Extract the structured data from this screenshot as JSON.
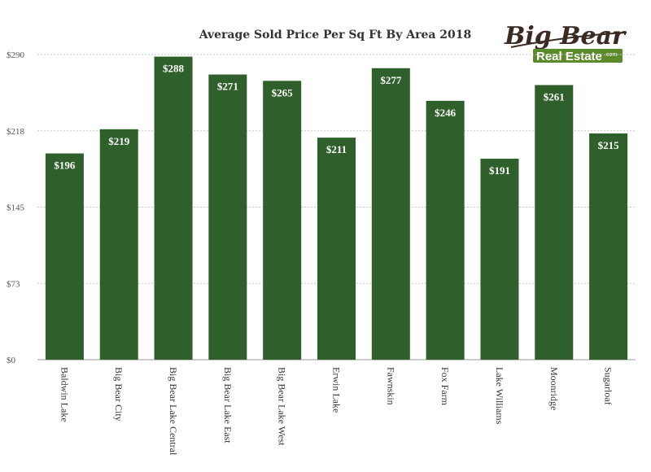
{
  "chart_data": {
    "type": "bar",
    "title": "Average Sold Price Per Sq Ft By Area 2018",
    "categories": [
      "Baldwin Lake",
      "Big Bear City",
      "Big Bear Lake Central",
      "Big Bear Lake East",
      "Big Bear Lake West",
      "Erwin Lake",
      "Fawnskin",
      "Fox Farm",
      "Lake Williams",
      "Moonridge",
      "Sugarloaf"
    ],
    "values": [
      196,
      219,
      288,
      271,
      265,
      211,
      277,
      246,
      191,
      261,
      215
    ],
    "value_labels": [
      "$196",
      "$219",
      "$288",
      "$271",
      "$265",
      "$211",
      "$277",
      "$246",
      "$191",
      "$261",
      "$215"
    ],
    "yticks": [
      0,
      72.5,
      145,
      217.5,
      290
    ],
    "ytick_labels": [
      "$0",
      "$73",
      "$145",
      "$218",
      "$290"
    ],
    "ylim": [
      0,
      290
    ],
    "xlabel": "",
    "ylabel": "",
    "grid": true,
    "bar_color": "#2f5f2a"
  },
  "logo": {
    "line1": "Big Bear",
    "line2": "Real Estate",
    "suffix": ".com",
    "dark_color": "#3a2a22",
    "green_color": "#5a8a2a"
  }
}
